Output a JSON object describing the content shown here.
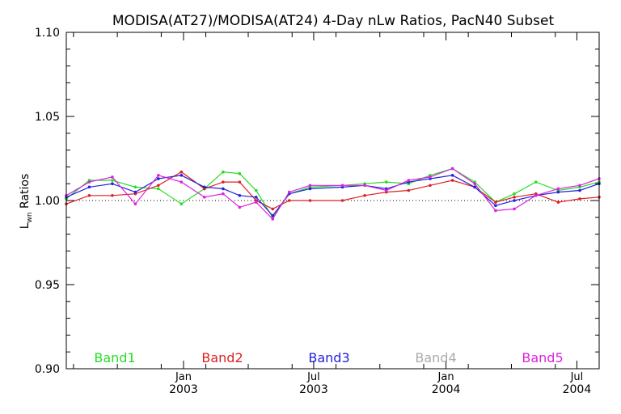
{
  "chart_data": {
    "type": "line",
    "title": "MODISA(AT27)/MODISA(AT24) 4-Day nLw Ratios, PacN40 Subset",
    "ylabel": {
      "main": "L",
      "sub": "wn",
      "rest": " Ratios"
    },
    "ylim": [
      0.9,
      1.1
    ],
    "xlim": [
      "2002-07-22",
      "2004-08-01"
    ],
    "y_ticks": [
      "0.90",
      "0.95",
      "1.00",
      "1.05",
      "1.10"
    ],
    "y_tick_values": [
      0.9,
      0.95,
      1.0,
      1.05,
      1.1
    ],
    "x_ticks": [
      {
        "date": "2003-01-01",
        "month": "Jan",
        "year": "2003"
      },
      {
        "date": "2003-07-01",
        "month": "Jul",
        "year": "2003"
      },
      {
        "date": "2004-01-01",
        "month": "Jan",
        "year": "2004"
      },
      {
        "date": "2004-07-01",
        "month": "Jul",
        "year": "2004"
      }
    ],
    "reference_line": 1.0,
    "grid": false,
    "series": [
      {
        "name": "Band1",
        "color": "#22dd22",
        "x": [
          "2002-07-22",
          "2002-08-23",
          "2002-09-24",
          "2002-10-26",
          "2002-11-27",
          "2002-12-29",
          "2003-01-30",
          "2003-02-25",
          "2003-03-20",
          "2003-04-12",
          "2003-05-05",
          "2003-05-28",
          "2003-06-26",
          "2003-08-10",
          "2003-09-10",
          "2003-10-10",
          "2003-11-10",
          "2003-12-10",
          "2004-01-10",
          "2004-02-10",
          "2004-03-10",
          "2004-04-05",
          "2004-05-05",
          "2004-06-05",
          "2004-07-05",
          "2004-08-01"
        ],
        "y": [
          1.001,
          1.012,
          1.012,
          1.008,
          1.007,
          0.998,
          1.007,
          1.017,
          1.016,
          1.006,
          0.99,
          1.004,
          1.008,
          1.009,
          1.01,
          1.011,
          1.01,
          1.015,
          1.019,
          1.011,
          0.999,
          1.004,
          1.011,
          1.006,
          1.008,
          1.011
        ]
      },
      {
        "name": "Band2",
        "color": "#dd2222",
        "x": [
          "2002-07-22",
          "2002-08-23",
          "2002-09-24",
          "2002-10-26",
          "2002-11-27",
          "2002-12-29",
          "2003-01-30",
          "2003-02-25",
          "2003-03-20",
          "2003-04-12",
          "2003-05-05",
          "2003-05-28",
          "2003-06-26",
          "2003-08-10",
          "2003-09-10",
          "2003-10-10",
          "2003-11-10",
          "2003-12-10",
          "2004-01-10",
          "2004-02-10",
          "2004-03-10",
          "2004-04-05",
          "2004-05-05",
          "2004-06-05",
          "2004-07-05",
          "2004-08-01"
        ],
        "y": [
          0.998,
          1.003,
          1.003,
          1.004,
          1.009,
          1.017,
          1.007,
          1.011,
          1.011,
          1.0,
          0.995,
          1.0,
          1.0,
          1.0,
          1.003,
          1.005,
          1.006,
          1.009,
          1.012,
          1.008,
          0.999,
          1.002,
          1.004,
          0.999,
          1.001,
          1.002
        ]
      },
      {
        "name": "Band3",
        "color": "#2222dd",
        "x": [
          "2002-07-22",
          "2002-08-23",
          "2002-09-24",
          "2002-10-26",
          "2002-11-27",
          "2002-12-29",
          "2003-01-30",
          "2003-02-25",
          "2003-03-20",
          "2003-04-12",
          "2003-05-05",
          "2003-05-28",
          "2003-06-26",
          "2003-08-10",
          "2003-09-10",
          "2003-10-10",
          "2003-11-10",
          "2003-12-10",
          "2004-01-10",
          "2004-02-10",
          "2004-03-10",
          "2004-04-05",
          "2004-05-05",
          "2004-06-05",
          "2004-07-05",
          "2004-08-01"
        ],
        "y": [
          1.002,
          1.008,
          1.01,
          1.005,
          1.013,
          1.015,
          1.008,
          1.007,
          1.003,
          1.002,
          0.991,
          1.004,
          1.007,
          1.008,
          1.009,
          1.007,
          1.011,
          1.013,
          1.015,
          1.008,
          0.997,
          1.0,
          1.003,
          1.005,
          1.006,
          1.01
        ]
      },
      {
        "name": "Band4",
        "color": "#aaaaaa",
        "x": [],
        "y": []
      },
      {
        "name": "Band5",
        "color": "#dd22dd",
        "x": [
          "2002-07-22",
          "2002-08-23",
          "2002-09-24",
          "2002-10-26",
          "2002-11-27",
          "2002-12-29",
          "2003-01-30",
          "2003-02-25",
          "2003-03-20",
          "2003-04-12",
          "2003-05-05",
          "2003-05-28",
          "2003-06-26",
          "2003-08-10",
          "2003-09-10",
          "2003-10-10",
          "2003-11-10",
          "2003-12-10",
          "2004-01-10",
          "2004-02-10",
          "2004-03-10",
          "2004-04-05",
          "2004-05-05",
          "2004-06-05",
          "2004-07-05",
          "2004-08-01"
        ],
        "y": [
          1.003,
          1.011,
          1.014,
          0.998,
          1.015,
          1.011,
          1.002,
          1.004,
          0.996,
          0.999,
          0.989,
          1.005,
          1.009,
          1.009,
          1.009,
          1.006,
          1.012,
          1.014,
          1.019,
          1.01,
          0.994,
          0.995,
          1.003,
          1.007,
          1.009,
          1.013
        ]
      }
    ]
  }
}
